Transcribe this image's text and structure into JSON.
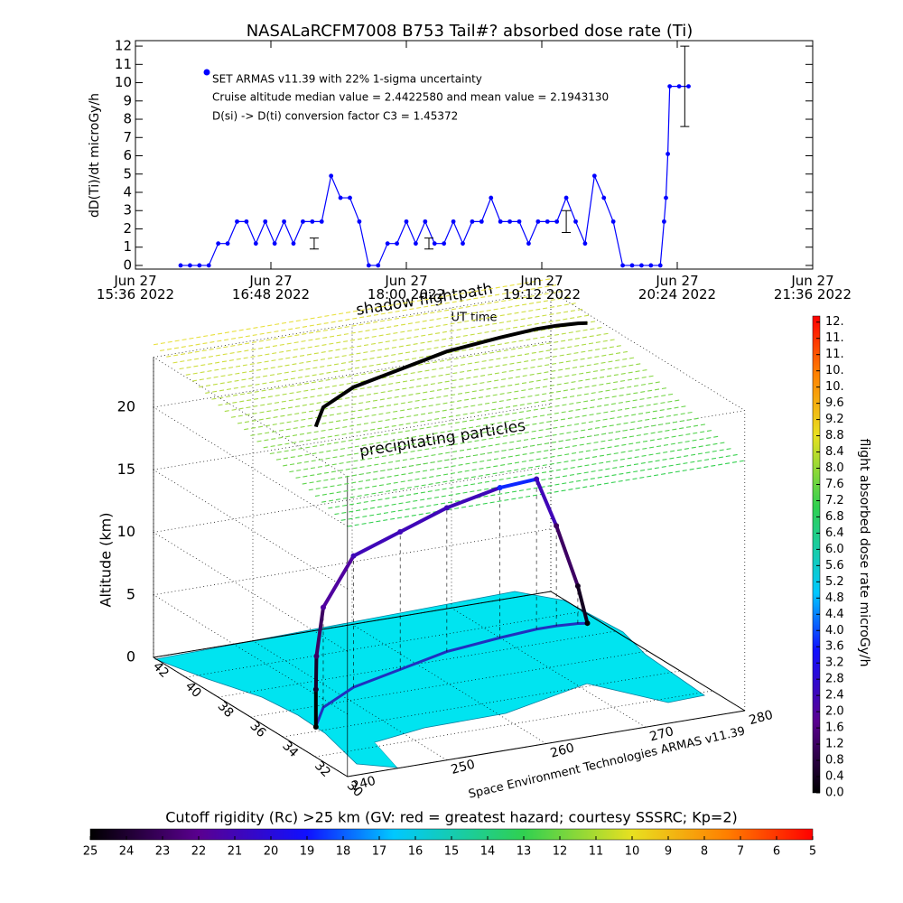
{
  "chart_data": [
    {
      "type": "line",
      "title": "NASALaRCFM7008  B753 Tail#? absorbed dose rate (Ti)",
      "y_label": "dD(Ti)/dt microGy/h",
      "annotations": [
        "Cruise altitude median value = 2.4422580 and mean value = 2.1943130",
        "D(si) -> D(ti) conversion factor C3 = 1.45372"
      ],
      "x": [
        "2022-06-27T16:00",
        "2022-06-27T16:05",
        "2022-06-27T16:10",
        "2022-06-27T16:15",
        "2022-06-27T16:20",
        "2022-06-27T16:25",
        "2022-06-27T16:30",
        "2022-06-27T16:35",
        "2022-06-27T16:40",
        "2022-06-27T16:45",
        "2022-06-27T16:50",
        "2022-06-27T16:55",
        "2022-06-27T17:00",
        "2022-06-27T17:05",
        "2022-06-27T17:10",
        "2022-06-27T17:15",
        "2022-06-27T17:20",
        "2022-06-27T17:25",
        "2022-06-27T17:30",
        "2022-06-27T17:35",
        "2022-06-27T17:40",
        "2022-06-27T17:45",
        "2022-06-27T17:50",
        "2022-06-27T17:55",
        "2022-06-27T18:00",
        "2022-06-27T18:05",
        "2022-06-27T18:10",
        "2022-06-27T18:15",
        "2022-06-27T18:20",
        "2022-06-27T18:25",
        "2022-06-27T18:30",
        "2022-06-27T18:35",
        "2022-06-27T18:40",
        "2022-06-27T18:45",
        "2022-06-27T18:50",
        "2022-06-27T18:55",
        "2022-06-27T19:00",
        "2022-06-27T19:05",
        "2022-06-27T19:10",
        "2022-06-27T19:15",
        "2022-06-27T19:20",
        "2022-06-27T19:25",
        "2022-06-27T19:30",
        "2022-06-27T19:35",
        "2022-06-27T19:40",
        "2022-06-27T19:45",
        "2022-06-27T19:50",
        "2022-06-27T19:55",
        "2022-06-27T20:00",
        "2022-06-27T20:05",
        "2022-06-27T20:10",
        "2022-06-27T20:15",
        "2022-06-27T20:17",
        "2022-06-27T20:18",
        "2022-06-27T20:19",
        "2022-06-27T20:20",
        "2022-06-27T20:25",
        "2022-06-27T20:30"
      ],
      "series": [
        {
          "name": "SET ARMAS v11.39 with 22% 1-sigma uncertainty",
          "color": "#0000ff",
          "values": [
            0,
            0,
            0,
            0,
            1.2,
            1.2,
            2.4,
            2.4,
            1.2,
            2.4,
            1.2,
            2.4,
            1.2,
            2.4,
            2.4,
            2.4,
            4.9,
            3.7,
            3.7,
            2.4,
            0,
            0,
            1.2,
            1.2,
            2.4,
            1.2,
            2.4,
            1.2,
            1.2,
            2.4,
            1.2,
            2.4,
            2.4,
            3.7,
            2.4,
            2.4,
            2.4,
            1.2,
            2.4,
            2.4,
            2.4,
            3.7,
            2.4,
            1.2,
            4.9,
            3.7,
            2.4,
            0,
            0,
            0,
            0,
            0,
            2.4,
            3.7,
            6.1,
            9.8,
            9.8,
            9.8
          ]
        }
      ],
      "error_bars": {
        "x": [
          "2022-06-27T17:11",
          "2022-06-27T18:12",
          "2022-06-27T19:25",
          "2022-06-27T20:28"
        ],
        "values": [
          1.2,
          1.2,
          2.4,
          9.8
        ],
        "errors": [
          0.3,
          0.3,
          0.6,
          2.2
        ]
      },
      "xlim": [
        "2022-06-27T15:36",
        "2022-06-27T21:36"
      ],
      "xticks": [
        {
          "value": "2022-06-27T15:36",
          "label": "Jun 27\n15:36 2022"
        },
        {
          "value": "2022-06-27T16:48",
          "label": "Jun 27\n16:48 2022"
        },
        {
          "value": "2022-06-27T18:00",
          "label": "Jun 27\n18:00 2022"
        },
        {
          "value": "2022-06-27T19:12",
          "label": "Jun 27\n19:12 2022"
        },
        {
          "value": "2022-06-27T20:24",
          "label": "Jun 27\n20:24 2022"
        },
        {
          "value": "2022-06-27T21:36",
          "label": "Jun 27\n21:36 2022"
        }
      ],
      "ylim": [
        -0.2,
        12.3
      ],
      "yticks": [
        0,
        1,
        2,
        3,
        4,
        5,
        6,
        7,
        8,
        9,
        10,
        11,
        12
      ]
    },
    {
      "type": "scatter3d",
      "z_label": "Altitude (km)",
      "annotations": [
        "shadow flightpath",
        "UT time",
        "precipitating particles",
        "Space Environment Technologies ARMAS v11.39"
      ],
      "lon": [
        243.9,
        243.9,
        244.2,
        247,
        252,
        258,
        264,
        270,
        274,
        276,
        278,
        278.8
      ],
      "lat": [
        34.35,
        34.35,
        34.5,
        35.8,
        37,
        37.8,
        38.6,
        39,
        39.2,
        39.2,
        39.1,
        39
      ],
      "alt": [
        0,
        3,
        5.5,
        8,
        10.5,
        11,
        11.5,
        12,
        12,
        8,
        3,
        0
      ],
      "dose": [
        0,
        0.5,
        1.2,
        2,
        2.4,
        2.4,
        2.4,
        3.7,
        2.4,
        1.2,
        0.4,
        0
      ],
      "xlim": [
        240,
        280
      ],
      "xticks": [
        240,
        250,
        260,
        270,
        280
      ],
      "ylim": [
        30,
        42
      ],
      "yticks": [
        42,
        40,
        38,
        36,
        34,
        32,
        30
      ],
      "zlim": [
        0,
        24
      ],
      "zticks": [
        0,
        5,
        10,
        15,
        20
      ],
      "colorbar": {
        "label": "flight absorbed dose rate microGy/h",
        "lim": [
          0,
          11.75
        ],
        "ticks": [
          {
            "value": 0,
            "label": "0.0"
          },
          0.4,
          0.8,
          1.2,
          1.6,
          {
            "value": 2,
            "label": "2.0"
          },
          2.4,
          2.8,
          3.2,
          3.6,
          {
            "value": 4,
            "label": "4.0"
          },
          4.4,
          4.8,
          5.2,
          5.6,
          {
            "value": 6,
            "label": "6.0"
          },
          6.4,
          6.8,
          7.2,
          7.6,
          {
            "value": 8,
            "label": "8.0"
          },
          8.4,
          8.8,
          9.2,
          9.6,
          {
            "value": 10,
            "label": "10."
          },
          {
            "value": 10.4,
            "label": "10."
          },
          {
            "value": 10.8,
            "label": "11."
          },
          {
            "value": 11.2,
            "label": "11."
          },
          {
            "value": 11.6,
            "label": "12."
          }
        ]
      },
      "cutoff_colorbar": {
        "title": "Cutoff rigidity (Rc) >25 km (GV: red = greatest hazard; courtesy SSSRC; Kp=2)",
        "lim": [
          25,
          5
        ],
        "ticks": [
          25,
          24,
          23,
          22,
          21,
          20,
          19,
          18,
          17,
          16,
          15,
          14,
          13,
          12,
          11,
          10,
          9,
          8,
          7,
          6,
          5
        ]
      }
    }
  ]
}
